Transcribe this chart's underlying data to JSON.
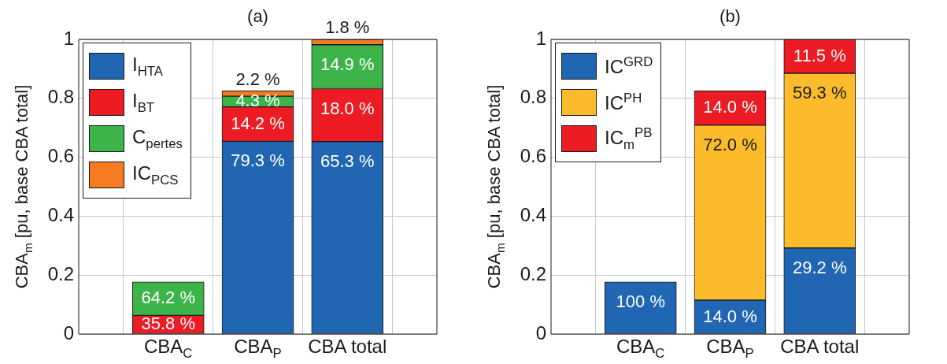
{
  "chart_data": [
    {
      "type": "bar",
      "title": "(a)",
      "ylabel": "CBA$_{m}$ [pu, base  CBA total]",
      "categories": [
        "CBA$_{C}$",
        "CBA$_{P}$",
        "CBA total"
      ],
      "stacked": true,
      "ylim": [
        0,
        1
      ],
      "yticks": [
        0,
        0.2,
        0.4,
        0.6,
        0.8,
        1
      ],
      "grid": true,
      "legend": "top left",
      "series": [
        {
          "name": "I$_{HTA}$",
          "color": "#2166b3",
          "values": [
            null,
            0.654,
            0.653
          ]
        },
        {
          "name": "I$_{BT}$",
          "color": "#ed1c24",
          "values": [
            0.063,
            0.117,
            0.18
          ]
        },
        {
          "name": "C$_{pertes}$",
          "color": "#3cb44a",
          "values": [
            0.114,
            0.036,
            0.149
          ]
        },
        {
          "name": "IC$_{PCS}$",
          "color": "#f47b20",
          "values": [
            null,
            0.018,
            0.018
          ]
        }
      ],
      "annotations": [
        {
          "text": "35.8 %",
          "x": "CBA$_{C}$",
          "y": 0.063
        },
        {
          "text": "64.2 %",
          "x": "CBA$_{C}$",
          "y": 0.177
        },
        {
          "text": "79.3 %",
          "x": "CBA$_{P}$",
          "y": 0.654
        },
        {
          "text": "14.2 %",
          "x": "CBA$_{P}$",
          "y": 0.771
        },
        {
          "text": "4.3 %",
          "x": "CBA$_{P}$",
          "y": 0.807
        },
        {
          "text": "2.2 %",
          "x": "CBA$_{P}$",
          "y": 0.825
        },
        {
          "text": "65.3 %",
          "x": "CBA total",
          "y": 0.653
        },
        {
          "text": "18.0 %",
          "x": "CBA total",
          "y": 0.833
        },
        {
          "text": "14.9 %",
          "x": "CBA total",
          "y": 0.982
        },
        {
          "text": "1.8 %",
          "x": "CBA total",
          "y": 1.0
        }
      ]
    },
    {
      "type": "bar",
      "title": "(b)",
      "ylabel": "CBA$_{m}$ [pu, base  CBA total]",
      "categories": [
        "CBA$_{C}$",
        "CBA$_{P}$",
        "CBA total"
      ],
      "stacked": true,
      "ylim": [
        0,
        1
      ],
      "yticks": [
        0,
        0.2,
        0.4,
        0.6,
        0.8,
        1
      ],
      "grid": true,
      "legend": "top left",
      "series": [
        {
          "name": "IC$^{GRD}$",
          "color": "#2166b3",
          "values": [
            0.177,
            0.115,
            0.292
          ]
        },
        {
          "name": "IC$^{PH}$",
          "color": "#fbbb2a",
          "values": [
            null,
            0.594,
            0.593
          ]
        },
        {
          "name": "IC$_{m}$$^{PB}$",
          "color": "#ed1c24",
          "values": [
            null,
            0.116,
            0.115
          ]
        }
      ],
      "annotations": [
        {
          "text": "100 %",
          "x": "CBA$_{C}$",
          "y": 0.177
        },
        {
          "text": "14.0 %",
          "x": "CBA$_{P}$",
          "y": 0.115
        },
        {
          "text": "72.0 %",
          "x": "CBA$_{P}$",
          "y": 0.709
        },
        {
          "text": "14.0 %",
          "x": "CBA$_{P}$",
          "y": 0.825
        },
        {
          "text": "29.2 %",
          "x": "CBA total",
          "y": 0.292
        },
        {
          "text": "59.3 %",
          "x": "CBA total",
          "y": 0.885
        },
        {
          "text": "11.5 %",
          "x": "CBA total",
          "y": 1.0
        }
      ]
    }
  ]
}
